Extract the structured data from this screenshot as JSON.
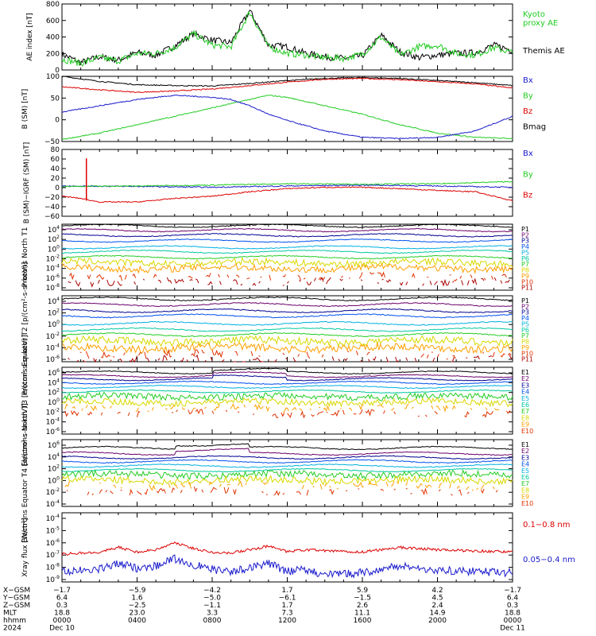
{
  "colors": {
    "black": "#000000",
    "red": "#dd0000",
    "green": "#22cc22",
    "blue": "#1a1acc",
    "P": [
      "#000000",
      "#6a006a",
      "#000090",
      "#0050ee",
      "#00b0e0",
      "#00c8a0",
      "#22cc22",
      "#d8d800",
      "#ffa000",
      "#e03000",
      "#aa0000"
    ],
    "E": [
      "#000000",
      "#6a006a",
      "#000090",
      "#0050ee",
      "#00b0e0",
      "#00c8a0",
      "#22cc22",
      "#d8d800",
      "#ffa000",
      "#e03000",
      "#aa0000"
    ]
  },
  "chart_data": [
    {
      "type": "line",
      "id": "ae",
      "ylabel": "AE index [nT]",
      "yticks": [
        "800",
        "600",
        "400",
        "200",
        "0"
      ],
      "ylim": [
        0,
        800
      ],
      "legend": [
        {
          "text": "Kyoto",
          "color": "green"
        },
        {
          "text": "proxy AE",
          "color": "green"
        },
        {
          "text": "Themis AE",
          "color": "black"
        }
      ],
      "series": [
        {
          "color": "black",
          "x": [
            0,
            1,
            2,
            3,
            4,
            5,
            6,
            7,
            8,
            9,
            10,
            11,
            12,
            13,
            14,
            15,
            16,
            17,
            18,
            19,
            20,
            21,
            22,
            23,
            24
          ],
          "y": [
            190,
            90,
            160,
            120,
            210,
            180,
            290,
            440,
            360,
            330,
            720,
            300,
            280,
            200,
            160,
            140,
            170,
            420,
            220,
            150,
            180,
            200,
            210,
            300,
            240
          ]
        },
        {
          "color": "green",
          "x": [
            0,
            1,
            2,
            3,
            4,
            5,
            6,
            7,
            8,
            9,
            10,
            11,
            12,
            13,
            14,
            15,
            16,
            17,
            18,
            19,
            20,
            21,
            22,
            23,
            24
          ],
          "y": [
            130,
            80,
            150,
            110,
            200,
            200,
            270,
            440,
            300,
            280,
            700,
            280,
            200,
            180,
            150,
            140,
            190,
            400,
            180,
            280,
            300,
            200,
            180,
            270,
            210
          ]
        }
      ]
    },
    {
      "type": "line",
      "id": "bsm",
      "ylabel": "B (SM) [nT]",
      "yticks": [
        "100",
        "50",
        "0",
        "−50"
      ],
      "ylim": [
        -55,
        100
      ],
      "legend": [
        {
          "text": "Bx",
          "color": "blue"
        },
        {
          "text": "By",
          "color": "green"
        },
        {
          "text": "Bz",
          "color": "red"
        },
        {
          "text": "Bmag",
          "color": "black"
        }
      ],
      "series": [
        {
          "color": "black",
          "x": [
            0,
            2,
            4,
            6,
            8,
            10,
            12,
            14,
            16,
            18,
            20,
            22,
            24
          ],
          "y": [
            100,
            88,
            80,
            78,
            77,
            83,
            90,
            95,
            97,
            95,
            90,
            85,
            78
          ]
        },
        {
          "color": "red",
          "x": [
            0,
            2,
            4,
            6,
            8,
            10,
            12,
            14,
            16,
            18,
            20,
            22,
            24
          ],
          "y": [
            75,
            68,
            62,
            65,
            70,
            78,
            86,
            93,
            95,
            92,
            87,
            82,
            72
          ]
        },
        {
          "color": "green",
          "x": [
            0,
            2,
            4,
            6,
            8,
            10,
            11,
            12,
            14,
            16,
            18,
            20,
            22,
            24
          ],
          "y": [
            -50,
            -35,
            -15,
            5,
            25,
            45,
            55,
            50,
            30,
            10,
            -15,
            -35,
            -45,
            -48
          ]
        },
        {
          "color": "blue",
          "x": [
            0,
            2,
            4,
            6,
            8,
            9,
            10,
            11,
            12,
            14,
            16,
            18,
            20,
            22,
            24
          ],
          "y": [
            15,
            30,
            45,
            55,
            50,
            45,
            30,
            10,
            -5,
            -30,
            -45,
            -48,
            -45,
            -30,
            5
          ]
        }
      ]
    },
    {
      "type": "line",
      "id": "bigrf",
      "ylabel": "B (SM)−IGRF (SM) [nT]",
      "yticks": [
        "80",
        "60",
        "40",
        "20",
        "0",
        "−20",
        "−40",
        "−60"
      ],
      "ylim": [
        -70,
        80
      ],
      "legend": [
        {
          "text": "Bx",
          "color": "blue"
        },
        {
          "text": "By",
          "color": "green"
        },
        {
          "text": "Bz",
          "color": "red"
        }
      ],
      "series": [
        {
          "color": "blue",
          "x": [
            0,
            4,
            8,
            12,
            16,
            20,
            24
          ],
          "y": [
            -2,
            -3,
            -5,
            -2,
            0,
            -2,
            -5
          ]
        },
        {
          "color": "green",
          "x": [
            0,
            4,
            8,
            12,
            16,
            20,
            24
          ],
          "y": [
            -3,
            -2,
            0,
            3,
            2,
            3,
            8
          ]
        },
        {
          "color": "red",
          "x": [
            0,
            1,
            2,
            4,
            6,
            8,
            10,
            12,
            14,
            16,
            18,
            20,
            22,
            24
          ],
          "y": [
            -25,
            -30,
            -38,
            -38,
            -30,
            -25,
            -15,
            -8,
            -5,
            -5,
            -8,
            -12,
            -15,
            -35
          ]
        }
      ]
    },
    {
      "type": "line",
      "id": "pnorth",
      "log": true,
      "ylabel": "Protons North T1",
      "yticks": [
        "10^4",
        "10^2",
        "10^0",
        "10^-2",
        "10^-4",
        "10^-6",
        "10^-8"
      ],
      "ylim": [
        -8,
        4
      ],
      "channels": [
        "P1",
        "P2",
        "P3",
        "P4",
        "P5",
        "P6",
        "P7",
        "P8",
        "P9",
        "P10",
        "P11"
      ],
      "levels": [
        3.7,
        2.9,
        2.0,
        1.0,
        -0.2,
        -1.0,
        -2.0,
        -3.0,
        -4.0,
        -5.5,
        -6.5
      ]
    },
    {
      "type": "line",
      "id": "pequator",
      "log": true,
      "ylabel": "Protons Equator T2 [p/(cm²-s-sr-keV)]",
      "yticks": [
        "10^4",
        "10^2",
        "10^0",
        "10^-2",
        "10^-4",
        "10^-6"
      ],
      "ylim": [
        -6.5,
        4
      ],
      "channels": [
        "P1",
        "P2",
        "P3",
        "P4",
        "P5",
        "P6",
        "P7",
        "P8",
        "P9",
        "P10",
        "P11"
      ],
      "levels": [
        3.5,
        2.6,
        1.6,
        0.8,
        -0.4,
        -1.4,
        -2.2,
        -3.2,
        -4.3,
        -5.3,
        -6.2
      ]
    },
    {
      "type": "line",
      "id": "enorth",
      "log": true,
      "ylabel": "Electrons North T3 [e/(cm²-s-sr-keV)]",
      "yticks": [
        "10^6",
        "10^4",
        "10^2",
        "10^0",
        "10^-2",
        "10^-4",
        "10^-6"
      ],
      "ylim": [
        -6.5,
        6.5
      ],
      "channels": [
        "E1",
        "E2",
        "E3",
        "E4",
        "E5",
        "E6",
        "E7",
        "E8",
        "E9",
        "E10"
      ],
      "levels": [
        5.5,
        4.8,
        4.2,
        3.5,
        2.7,
        1.8,
        0.8,
        -0.3,
        -1.5,
        -2.5
      ]
    },
    {
      "type": "line",
      "id": "eequator",
      "log": true,
      "ylabel": "Electrons Equator T4 [e/(cm²-s-sr-keV)]",
      "yticks": [
        "10^6",
        "10^4",
        "10^2",
        "10^0",
        "10^-2",
        "10^-4"
      ],
      "ylim": [
        -5.5,
        6.5
      ],
      "channels": [
        "E1",
        "E2",
        "E3",
        "E4",
        "E5",
        "E6",
        "E7",
        "E8",
        "E9",
        "E10"
      ],
      "levels": [
        5.0,
        4.0,
        3.3,
        2.6,
        1.8,
        1.0,
        0.2,
        -0.8,
        -1.8,
        -2.8
      ]
    },
    {
      "type": "line",
      "id": "xray",
      "log": true,
      "ylabel": "Xray flux [W/m²]",
      "yticks": [
        "10^-4",
        "10^-5",
        "10^-6",
        "10^-7",
        "10^-8",
        "10^-9"
      ],
      "ylim": [
        -9.6,
        -3.6
      ],
      "legend": [
        {
          "text": "0.1−0.8 nm",
          "color": "red"
        },
        {
          "text": "0.05−0.4 nm",
          "color": "blue"
        }
      ],
      "series": [
        {
          "color": "red",
          "x": [
            0,
            2,
            3,
            4,
            5,
            6,
            7,
            8,
            9,
            10,
            11,
            12,
            13,
            14,
            16,
            18,
            20,
            22,
            24
          ],
          "y": [
            -7.2,
            -7.0,
            -6.6,
            -7.0,
            -6.8,
            -6.2,
            -6.7,
            -7.0,
            -7.1,
            -6.8,
            -6.5,
            -7.0,
            -6.8,
            -6.9,
            -7.0,
            -6.6,
            -6.8,
            -6.9,
            -7.0
          ]
        },
        {
          "color": "blue",
          "x": [
            0,
            2,
            3,
            4,
            5,
            6,
            7,
            8,
            9,
            10,
            11,
            12,
            13,
            14,
            16,
            18,
            20,
            22,
            24
          ],
          "y": [
            -8.7,
            -8.5,
            -8.0,
            -8.4,
            -8.2,
            -7.6,
            -8.1,
            -8.5,
            -8.8,
            -8.3,
            -8.0,
            -8.7,
            -8.5,
            -9.0,
            -8.8,
            -8.2,
            -8.6,
            -8.7,
            -8.8
          ]
        }
      ]
    }
  ],
  "axis": {
    "rows": [
      {
        "label": "X−GSM",
        "values": [
          "−1.7",
          "−5.9",
          "−4.2",
          "1.7",
          "5.9",
          "4.2",
          "−1.7"
        ]
      },
      {
        "label": "Y−GSM",
        "values": [
          "6.4",
          "1.6",
          "−5.0",
          "−6.1",
          "−1.5",
          "4.5",
          "6.4"
        ]
      },
      {
        "label": "Z−GSM",
        "values": [
          "0.3",
          "−2.5",
          "−1.1",
          "1.7",
          "2.6",
          "2.4",
          "0.3"
        ]
      },
      {
        "label": "MLT",
        "values": [
          "18.8",
          "23.0",
          "3.3",
          "7.3",
          "11.1",
          "14.9",
          "18.8"
        ]
      },
      {
        "label": "hhmm",
        "values": [
          "0000",
          "0400",
          "0800",
          "1200",
          "1600",
          "2000",
          "0000"
        ]
      },
      {
        "label": "2024",
        "values": [
          "Dec 10",
          "",
          "",
          "",
          "",
          "",
          "Dec 11"
        ]
      }
    ]
  }
}
